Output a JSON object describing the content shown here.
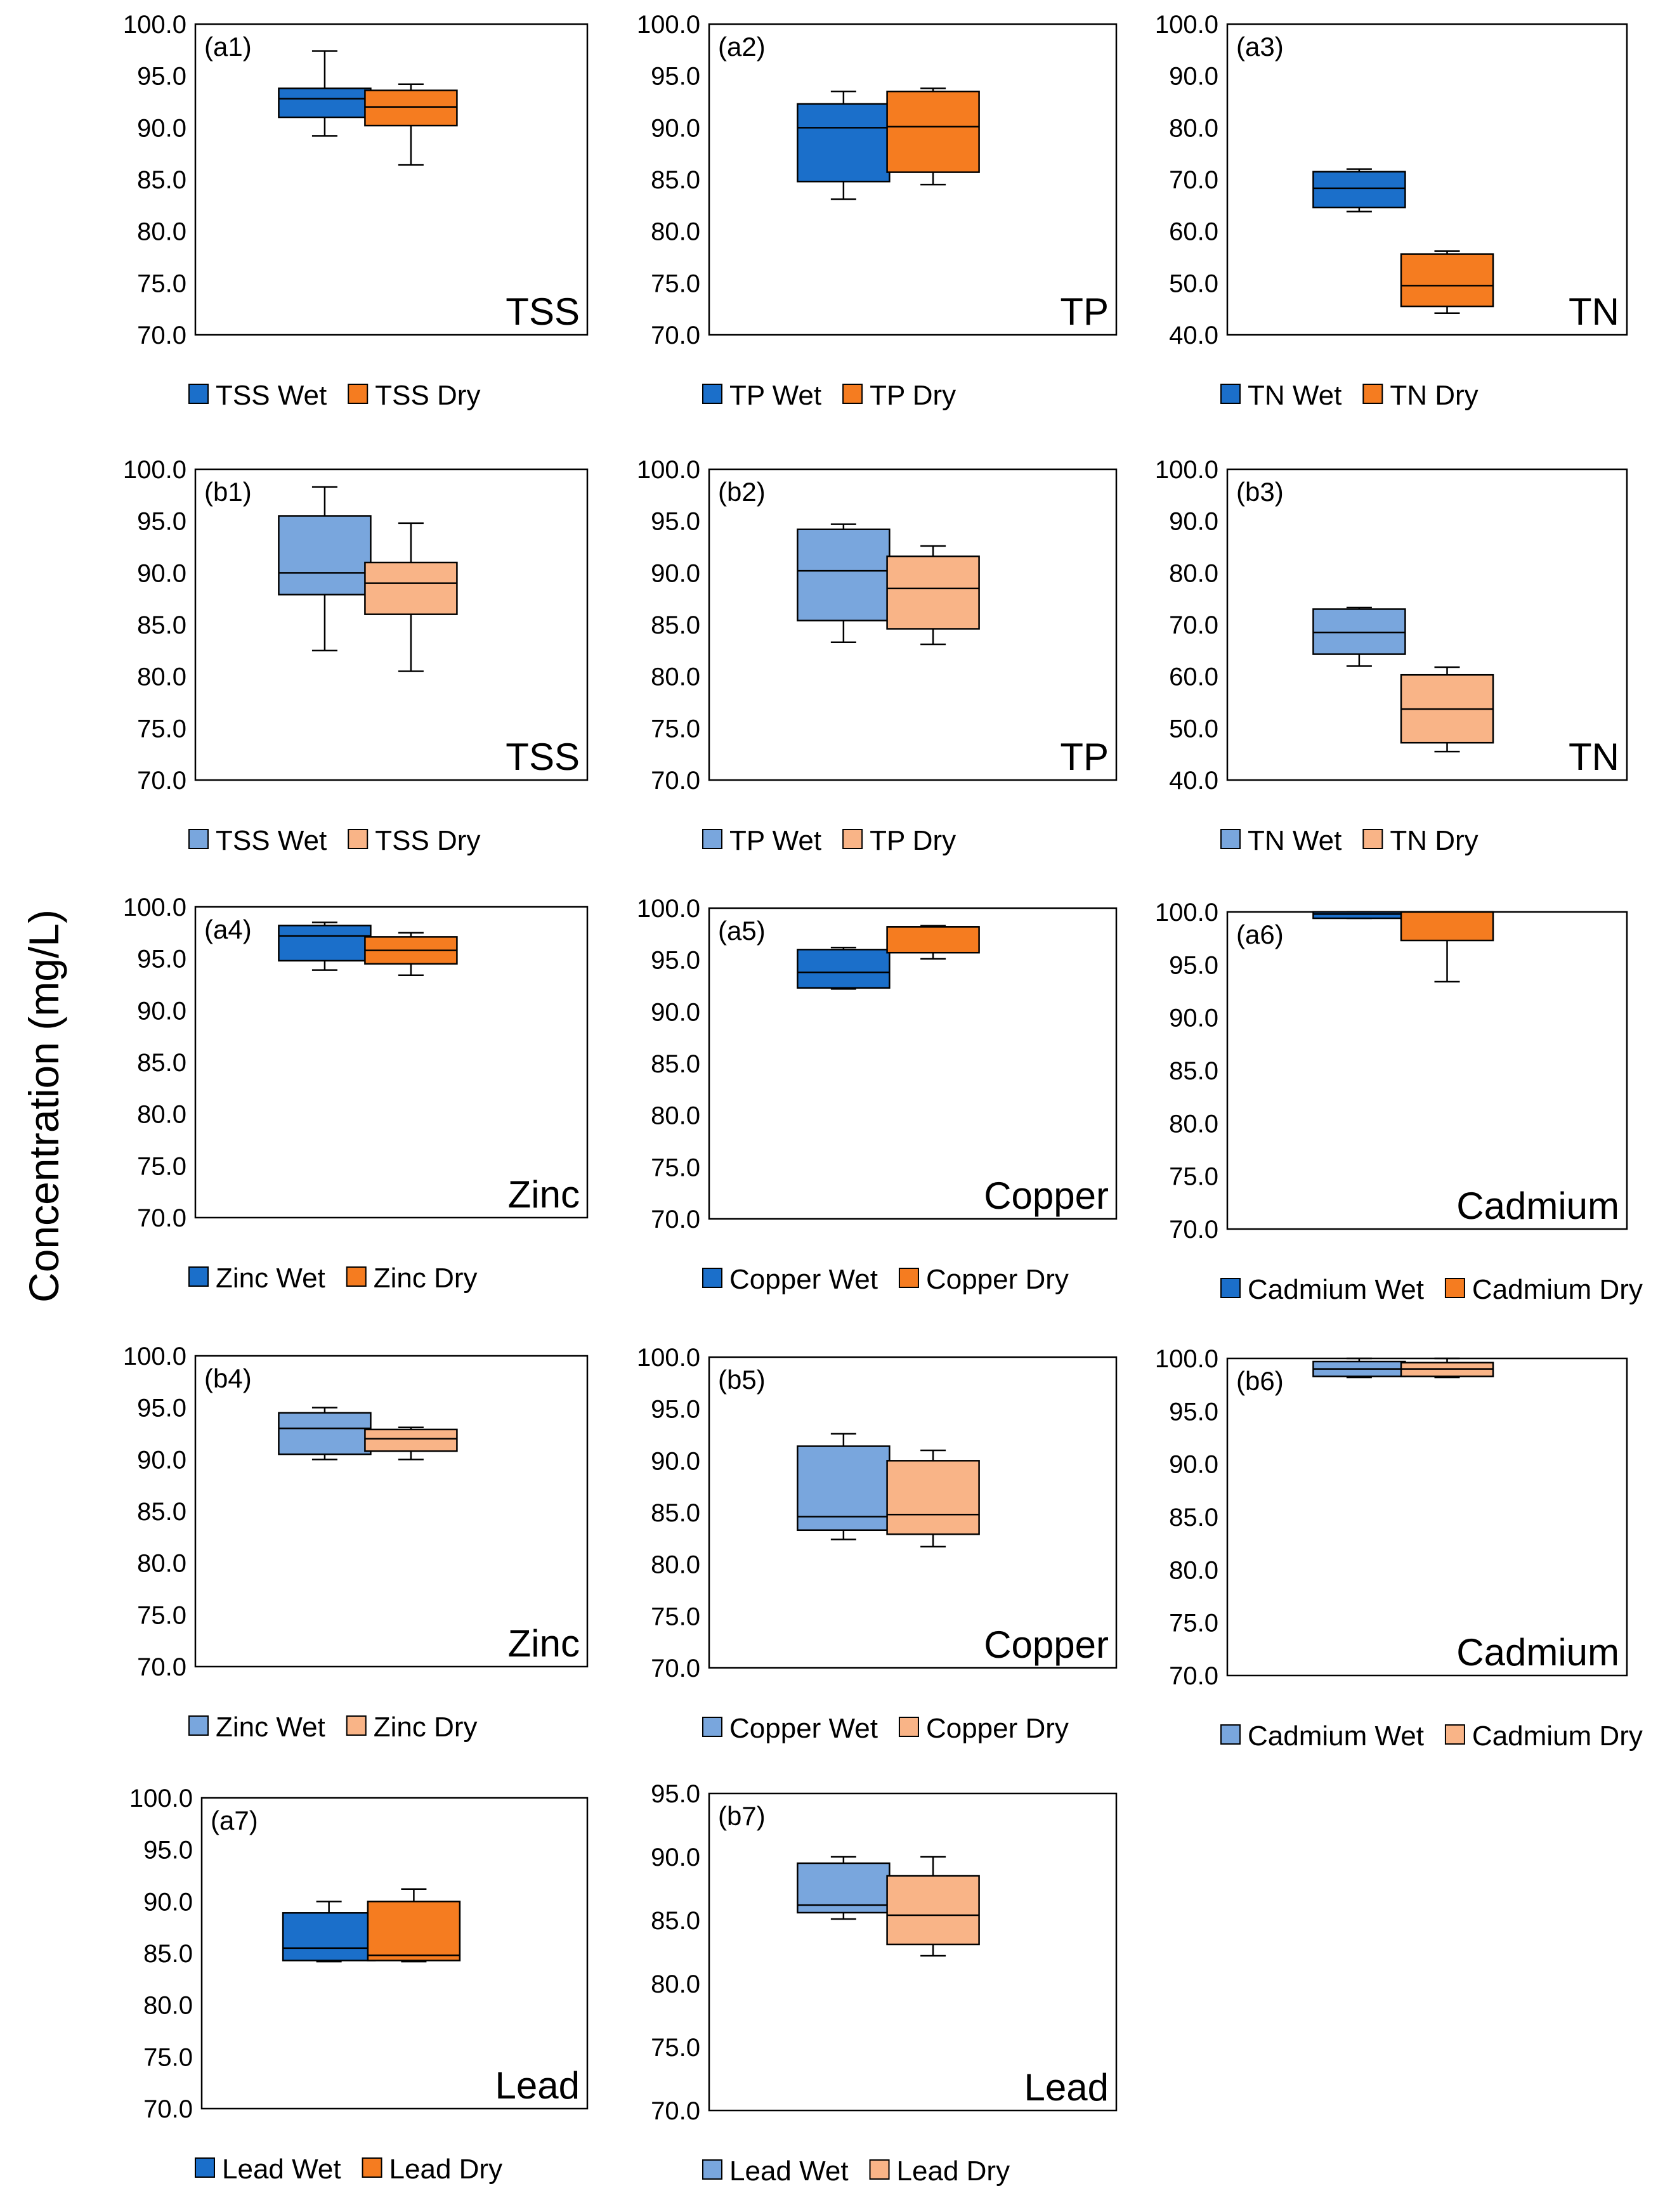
{
  "y_axis_label": "Concentration (mg/L)",
  "colors": {
    "wet_a": "#1B6FCA",
    "dry_a": "#F57C20",
    "wet_b": "#79A6DD",
    "dry_b": "#F9B487",
    "stroke": "#000000"
  },
  "chart_data": [
    {
      "type": "box",
      "id": "a1",
      "label": "(a1)",
      "parameter": "TSS",
      "ylim": [
        70,
        100
      ],
      "ticks": [
        "100.0",
        "95.0",
        "90.0",
        "85.0",
        "80.0",
        "75.0",
        "70.0"
      ],
      "series": [
        {
          "name": "TSS Wet",
          "color": "wet_a",
          "min": 89.2,
          "q1": 91.0,
          "median": 92.8,
          "q3": 93.8,
          "max": 97.4
        },
        {
          "name": "TSS Dry",
          "color": "dry_a",
          "min": 86.4,
          "q1": 90.2,
          "median": 92.0,
          "q3": 93.6,
          "max": 94.2
        }
      ]
    },
    {
      "type": "box",
      "id": "a2",
      "label": "(a2)",
      "parameter": "TP",
      "ylim": [
        70,
        100
      ],
      "ticks": [
        "100.0",
        "95.0",
        "90.0",
        "85.0",
        "80.0",
        "75.0",
        "70.0"
      ],
      "series": [
        {
          "name": "TP Wet",
          "color": "wet_a",
          "min": 83.1,
          "q1": 84.8,
          "median": 90.0,
          "q3": 92.3,
          "max": 93.5
        },
        {
          "name": "TP Dry",
          "color": "dry_a",
          "min": 84.5,
          "q1": 85.7,
          "median": 90.1,
          "q3": 93.5,
          "max": 93.8
        }
      ]
    },
    {
      "type": "box",
      "id": "a3",
      "label": "(a3)",
      "parameter": "TN",
      "ylim": [
        40,
        100
      ],
      "ticks": [
        "100.0",
        "90.0",
        "80.0",
        "70.0",
        "60.0",
        "50.0",
        "40.0"
      ],
      "series": [
        {
          "name": "TN Wet",
          "color": "wet_a",
          "min": 63.8,
          "q1": 64.6,
          "median": 68.3,
          "q3": 71.5,
          "max": 72.0
        },
        {
          "name": "TN Dry",
          "color": "dry_a",
          "min": 44.2,
          "q1": 45.5,
          "median": 49.5,
          "q3": 55.6,
          "max": 56.2
        }
      ]
    },
    {
      "type": "box",
      "id": "b1",
      "label": "(b1)",
      "parameter": "TSS",
      "ylim": [
        70,
        100
      ],
      "ticks": [
        "100.0",
        "95.0",
        "90.0",
        "85.0",
        "80.0",
        "75.0",
        "70.0"
      ],
      "series": [
        {
          "name": "TSS Wet",
          "color": "wet_b",
          "min": 82.5,
          "q1": 87.9,
          "median": 90.0,
          "q3": 95.5,
          "max": 98.3
        },
        {
          "name": "TSS Dry",
          "color": "dry_b",
          "min": 80.5,
          "q1": 86.0,
          "median": 89.0,
          "q3": 91.0,
          "max": 94.8
        }
      ]
    },
    {
      "type": "box",
      "id": "b2",
      "label": "(b2)",
      "parameter": "TP",
      "ylim": [
        70,
        100
      ],
      "ticks": [
        "100.0",
        "95.0",
        "90.0",
        "85.0",
        "80.0",
        "75.0",
        "70.0"
      ],
      "series": [
        {
          "name": "TP Wet",
          "color": "wet_b",
          "min": 83.3,
          "q1": 85.4,
          "median": 90.2,
          "q3": 94.2,
          "max": 94.7
        },
        {
          "name": "TP Dry",
          "color": "dry_b",
          "min": 83.1,
          "q1": 84.6,
          "median": 88.5,
          "q3": 91.6,
          "max": 92.6
        }
      ]
    },
    {
      "type": "box",
      "id": "b3",
      "label": "(b3)",
      "parameter": "TN",
      "ylim": [
        40,
        100
      ],
      "ticks": [
        "100.0",
        "90.0",
        "80.0",
        "70.0",
        "60.0",
        "50.0",
        "40.0"
      ],
      "series": [
        {
          "name": "TN Wet",
          "color": "wet_b",
          "min": 62.0,
          "q1": 64.3,
          "median": 68.5,
          "q3": 73.0,
          "max": 73.3
        },
        {
          "name": "TN Dry",
          "color": "dry_b",
          "min": 45.5,
          "q1": 47.2,
          "median": 53.7,
          "q3": 60.3,
          "max": 61.8
        }
      ]
    },
    {
      "type": "box",
      "id": "a4",
      "label": "(a4)",
      "parameter": "Zinc",
      "ylim": [
        70,
        100
      ],
      "ticks": [
        "100.0",
        "95.0",
        "90.0",
        "85.0",
        "80.0",
        "75.0",
        "70.0"
      ],
      "series": [
        {
          "name": "Zinc Wet",
          "color": "wet_a",
          "min": 93.9,
          "q1": 94.8,
          "median": 97.2,
          "q3": 98.2,
          "max": 98.5
        },
        {
          "name": "Zinc Dry",
          "color": "dry_a",
          "min": 93.4,
          "q1": 94.5,
          "median": 95.8,
          "q3": 97.1,
          "max": 97.5
        }
      ]
    },
    {
      "type": "box",
      "id": "a5",
      "label": "(a5)",
      "parameter": "Copper",
      "ylim": [
        70,
        100
      ],
      "ticks": [
        "100.0",
        "95.0",
        "90.0",
        "85.0",
        "80.0",
        "75.0",
        "70.0"
      ],
      "series": [
        {
          "name": "Copper Wet",
          "color": "wet_a",
          "min": 92.2,
          "q1": 92.3,
          "median": 93.8,
          "q3": 96.0,
          "max": 96.2
        },
        {
          "name": "Copper Dry",
          "color": "dry_a",
          "min": 95.1,
          "q1": 95.7,
          "median": 98.2,
          "q3": 98.2,
          "max": 98.3
        }
      ]
    },
    {
      "type": "box",
      "id": "a6",
      "label": "(a6)",
      "parameter": "Cadmium",
      "ylim": [
        70,
        100
      ],
      "ticks": [
        "100.0",
        "95.0",
        "90.0",
        "85.0",
        "80.0",
        "75.0",
        "70.0"
      ],
      "series": [
        {
          "name": "Cadmium Wet",
          "color": "wet_a",
          "min": 99.4,
          "q1": 99.4,
          "median": 99.8,
          "q3": 100.0,
          "max": 100.0
        },
        {
          "name": "Cadmium Dry",
          "color": "dry_a",
          "min": 93.4,
          "q1": 97.3,
          "median": 100.0,
          "q3": 100.0,
          "max": 100.0
        }
      ]
    },
    {
      "type": "box",
      "id": "b4",
      "label": "(b4)",
      "parameter": "Zinc",
      "ylim": [
        70,
        100
      ],
      "ticks": [
        "100.0",
        "95.0",
        "90.0",
        "85.0",
        "80.0",
        "75.0",
        "70.0"
      ],
      "series": [
        {
          "name": "Zinc Wet",
          "color": "wet_b",
          "min": 90.0,
          "q1": 90.5,
          "median": 93.0,
          "q3": 94.5,
          "max": 95.0
        },
        {
          "name": "Zinc Dry",
          "color": "dry_b",
          "min": 90.0,
          "q1": 90.8,
          "median": 92.0,
          "q3": 92.9,
          "max": 93.1
        }
      ]
    },
    {
      "type": "box",
      "id": "b5",
      "label": "(b5)",
      "parameter": "Copper",
      "ylim": [
        70,
        100
      ],
      "ticks": [
        "100.0",
        "95.0",
        "90.0",
        "85.0",
        "80.0",
        "75.0",
        "70.0"
      ],
      "series": [
        {
          "name": "Copper Wet",
          "color": "wet_b",
          "min": 82.4,
          "q1": 83.3,
          "median": 84.6,
          "q3": 91.4,
          "max": 92.6
        },
        {
          "name": "Copper Dry",
          "color": "dry_b",
          "min": 81.7,
          "q1": 82.9,
          "median": 84.8,
          "q3": 90.0,
          "max": 91.0
        }
      ]
    },
    {
      "type": "box",
      "id": "b6",
      "label": "(b6)",
      "parameter": "Cadmium",
      "ylim": [
        70,
        100
      ],
      "ticks": [
        "100.0",
        "95.0",
        "90.0",
        "85.0",
        "80.0",
        "75.0",
        "70.0"
      ],
      "series": [
        {
          "name": "Cadmium Wet",
          "color": "wet_b",
          "min": 98.2,
          "q1": 98.3,
          "median": 99.0,
          "q3": 99.7,
          "max": 100.0
        },
        {
          "name": "Cadmium Dry",
          "color": "dry_b",
          "min": 98.2,
          "q1": 98.3,
          "median": 99.0,
          "q3": 99.6,
          "max": 100.0
        }
      ]
    },
    {
      "type": "box",
      "id": "a7",
      "label": "(a7)",
      "parameter": "Lead",
      "ylim": [
        70,
        100
      ],
      "ticks": [
        "100.0",
        "95.0",
        "90.0",
        "85.0",
        "80.0",
        "75.0",
        "70.0"
      ],
      "series": [
        {
          "name": "Lead Wet",
          "color": "wet_a",
          "min": 84.2,
          "q1": 84.3,
          "median": 85.5,
          "q3": 88.9,
          "max": 90.0
        },
        {
          "name": "Lead Dry",
          "color": "dry_a",
          "min": 84.2,
          "q1": 84.3,
          "median": 84.8,
          "q3": 90.0,
          "max": 91.2
        }
      ]
    },
    {
      "type": "box",
      "id": "b7",
      "label": "(b7)",
      "parameter": "Lead",
      "ylim": [
        70,
        95
      ],
      "ticks": [
        "95.0",
        "90.0",
        "85.0",
        "80.0",
        "75.0",
        "70.0"
      ],
      "series": [
        {
          "name": "Lead Wet",
          "color": "wet_b",
          "min": 85.1,
          "q1": 85.6,
          "median": 86.2,
          "q3": 89.5,
          "max": 90.0
        },
        {
          "name": "Lead Dry",
          "color": "dry_b",
          "min": 82.2,
          "q1": 83.1,
          "median": 85.4,
          "q3": 88.5,
          "max": 90.0
        }
      ]
    }
  ]
}
